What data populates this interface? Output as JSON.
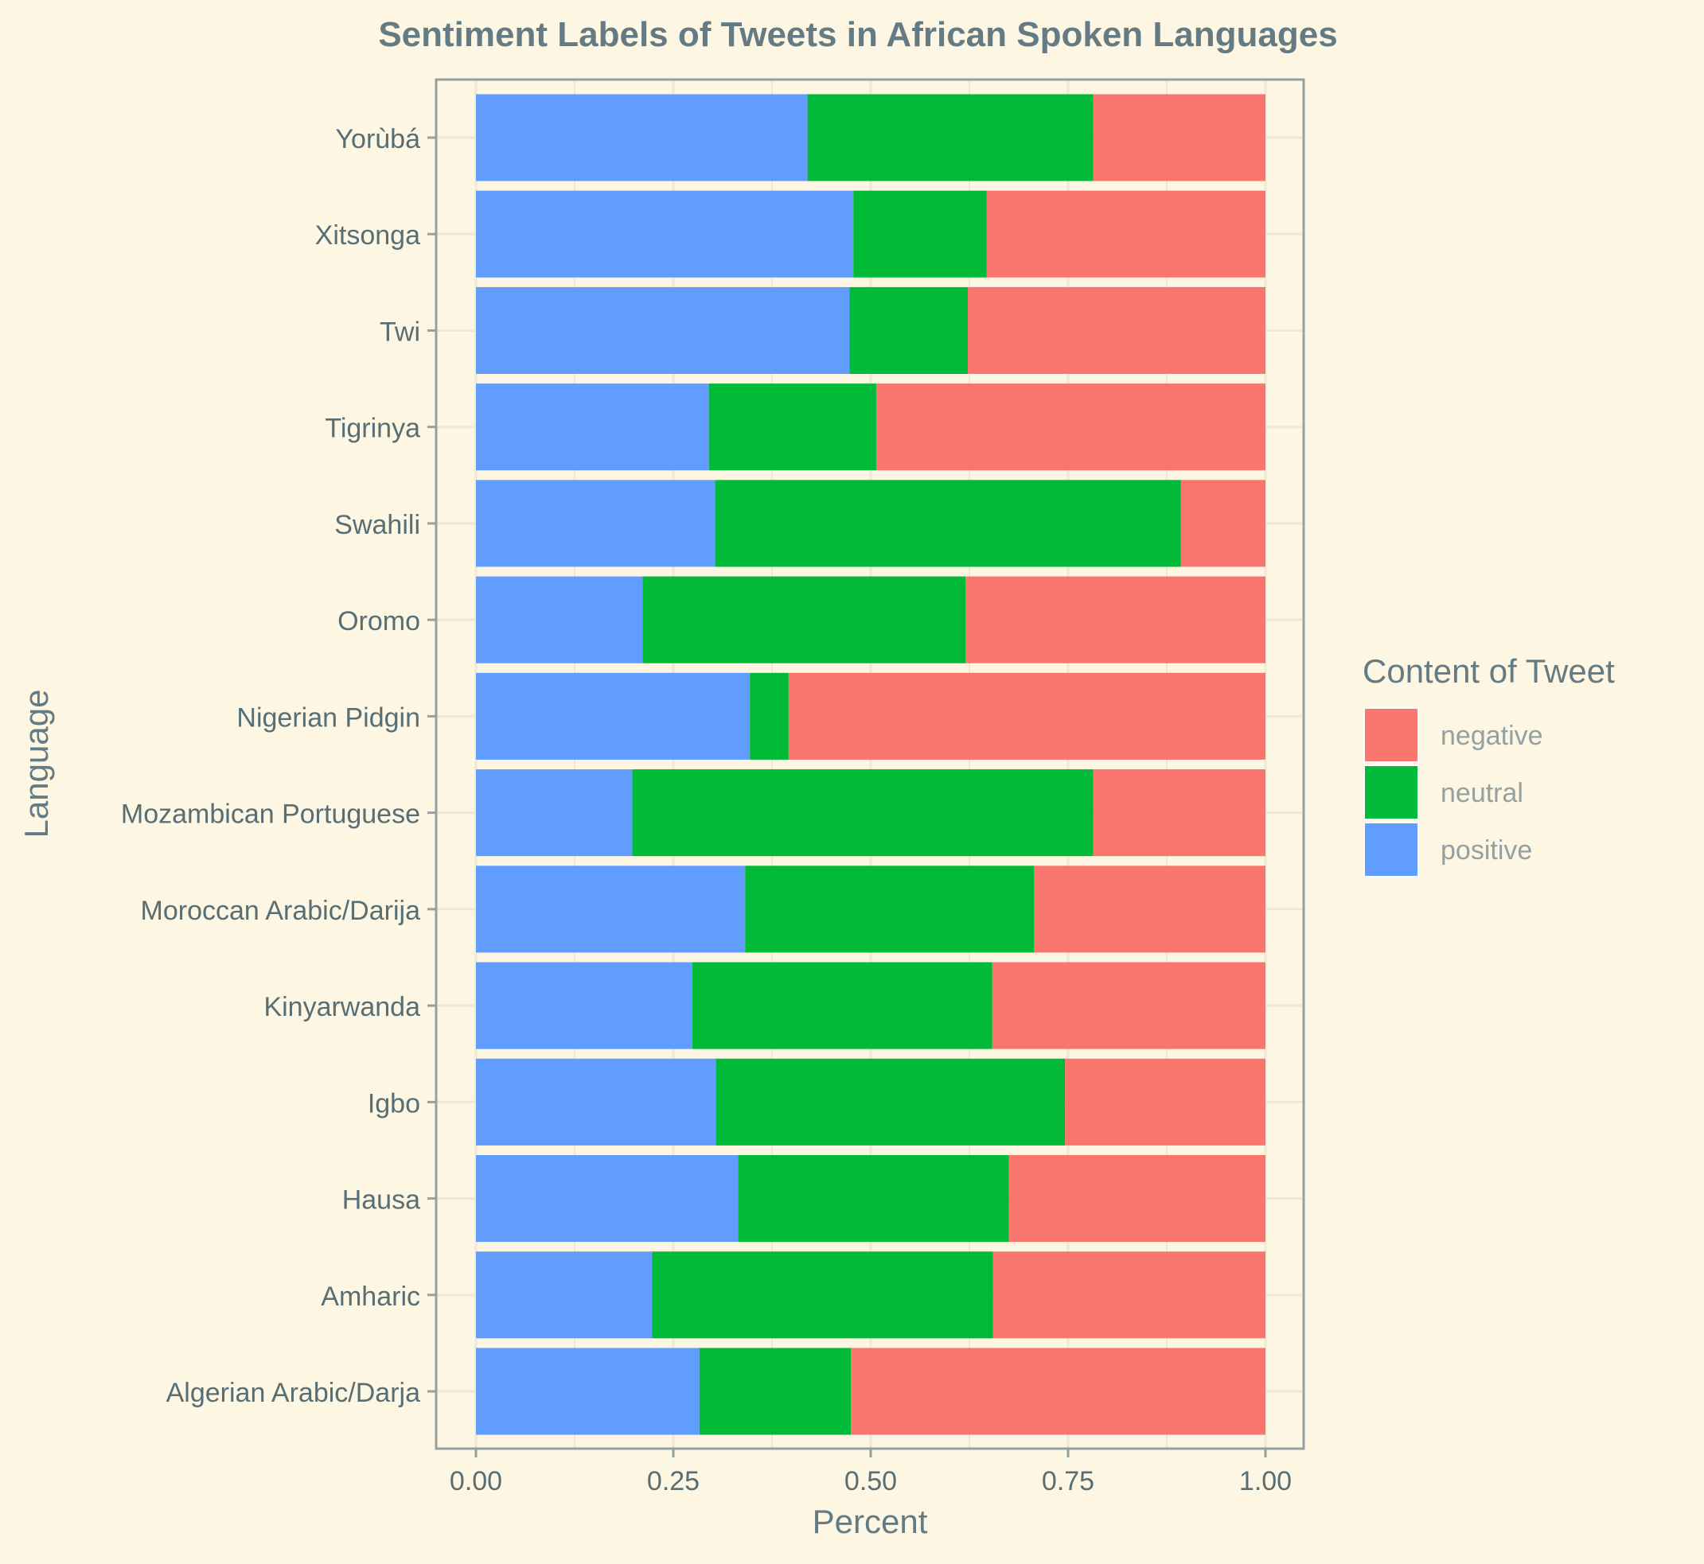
{
  "chart_data": {
    "type": "bar",
    "orientation": "horizontal",
    "stacked": true,
    "title": "Sentiment Labels of Tweets in African Spoken Languages",
    "xlabel": "Percent",
    "ylabel": "Language",
    "xlim": [
      0,
      1
    ],
    "xticks": [
      "0.00",
      "0.25",
      "0.50",
      "0.75",
      "1.00"
    ],
    "xtick_values": [
      0,
      0.25,
      0.5,
      0.75,
      1.0
    ],
    "grid": true,
    "legend": {
      "title": "Content of Tweet",
      "placement": "right",
      "entries": [
        "negative",
        "neutral",
        "positive"
      ]
    },
    "categories": [
      "Yorùbá",
      "Xitsonga",
      "Twi",
      "Tigrinya",
      "Swahili",
      "Oromo",
      "Nigerian Pidgin",
      "Mozambican Portuguese",
      "Moroccan Arabic/Darija",
      "Kinyarwanda",
      "Igbo",
      "Hausa",
      "Amharic",
      "Algerian Arabic/Darja"
    ],
    "series": [
      {
        "name": "positive",
        "color": "#619cff",
        "values": [
          0.42,
          0.478,
          0.473,
          0.295,
          0.303,
          0.211,
          0.347,
          0.198,
          0.341,
          0.274,
          0.304,
          0.332,
          0.223,
          0.283
        ]
      },
      {
        "name": "neutral",
        "color": "#00ba38",
        "values": [
          0.362,
          0.169,
          0.15,
          0.212,
          0.59,
          0.409,
          0.049,
          0.584,
          0.366,
          0.38,
          0.442,
          0.343,
          0.432,
          0.192
        ]
      },
      {
        "name": "negative",
        "color": "#f8766d",
        "values": [
          0.218,
          0.353,
          0.377,
          0.493,
          0.107,
          0.38,
          0.604,
          0.218,
          0.293,
          0.346,
          0.254,
          0.325,
          0.345,
          0.525
        ]
      }
    ],
    "colors": {
      "background": "#fdf6e3",
      "title": "#657b83",
      "axis": "#93a1a1",
      "grid": "#eee8d5",
      "tick_text": "#586e75",
      "legend_text": "#93a1a1"
    }
  }
}
